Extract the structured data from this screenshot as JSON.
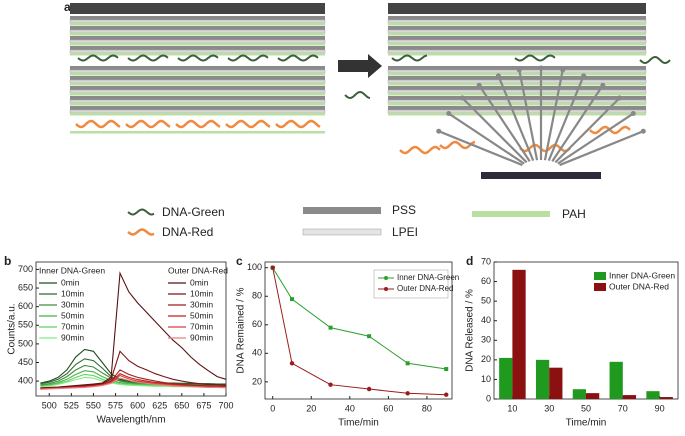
{
  "panel_labels": [
    "a",
    "b",
    "c",
    "d"
  ],
  "legend": [
    "DNA-Green",
    "DNA-Red",
    "PSS",
    "LPEI",
    "PAH"
  ],
  "chart_data": [
    {
      "type": "line",
      "x_label": "Wavelength/nm",
      "y_label": "Counts/a.u.",
      "legend_titles": [
        "Inner DNA-Green",
        "Outer DNA-Red"
      ],
      "xlim": [
        485,
        700
      ],
      "xticks": [
        500,
        525,
        550,
        575,
        600,
        625,
        650,
        675,
        700
      ],
      "ylim": [
        360,
        720
      ],
      "yticks": [
        400,
        450,
        500,
        550,
        600,
        650,
        700
      ],
      "x": [
        490,
        500,
        510,
        520,
        530,
        540,
        550,
        560,
        570,
        580,
        590,
        600,
        610,
        620,
        630,
        640,
        650,
        660,
        670,
        680,
        690,
        700
      ],
      "series": [
        {
          "name": "0min",
          "color": "#1e4d1e",
          "values": [
            395,
            400,
            410,
            430,
            465,
            485,
            480,
            450,
            420,
            405,
            400,
            398,
            397,
            396,
            395,
            395,
            394,
            394,
            393,
            393,
            392,
            392
          ]
        },
        {
          "name": "10min",
          "color": "#2e6b2e",
          "values": [
            393,
            397,
            405,
            420,
            445,
            460,
            455,
            435,
            412,
            402,
            398,
            396,
            395,
            394,
            394,
            393,
            393,
            392,
            392,
            391,
            391,
            390
          ]
        },
        {
          "name": "30min",
          "color": "#3f8f3f",
          "values": [
            390,
            393,
            400,
            412,
            430,
            442,
            438,
            422,
            408,
            400,
            396,
            394,
            393,
            392,
            392,
            391,
            391,
            390,
            390,
            389,
            389,
            388
          ]
        },
        {
          "name": "50min",
          "color": "#4caf4c",
          "values": [
            388,
            390,
            396,
            405,
            418,
            428,
            425,
            412,
            402,
            396,
            393,
            392,
            391,
            390,
            390,
            389,
            389,
            388,
            388,
            387,
            387,
            386
          ]
        },
        {
          "name": "70min",
          "color": "#5fd05f",
          "values": [
            386,
            388,
            393,
            400,
            410,
            418,
            415,
            405,
            398,
            393,
            391,
            390,
            389,
            388,
            388,
            387,
            387,
            386,
            386,
            385,
            385,
            384
          ]
        },
        {
          "name": "90min",
          "color": "#7ff07f",
          "values": [
            385,
            387,
            391,
            397,
            404,
            410,
            408,
            400,
            395,
            391,
            389,
            388,
            387,
            386,
            386,
            385,
            385,
            385,
            384,
            384,
            384,
            383
          ]
        },
        {
          "name": "0min",
          "color": "#5a1010",
          "values": [
            382,
            383,
            384,
            386,
            388,
            390,
            392,
            395,
            410,
            690,
            640,
            610,
            585,
            560,
            535,
            510,
            490,
            465,
            445,
            428,
            412,
            405
          ]
        },
        {
          "name": "10min",
          "color": "#7a1515",
          "values": [
            380,
            381,
            382,
            384,
            386,
            388,
            390,
            393,
            405,
            480,
            455,
            440,
            430,
            420,
            412,
            405,
            400,
            396,
            393,
            391,
            390,
            389
          ]
        },
        {
          "name": "30min",
          "color": "#a01c1c",
          "values": [
            380,
            381,
            382,
            383,
            385,
            386,
            388,
            391,
            400,
            430,
            418,
            410,
            405,
            400,
            396,
            393,
            391,
            389,
            388,
            387,
            386,
            386
          ]
        },
        {
          "name": "50min",
          "color": "#c02020",
          "values": [
            379,
            380,
            381,
            382,
            384,
            385,
            387,
            390,
            398,
            420,
            410,
            404,
            400,
            396,
            393,
            391,
            389,
            387,
            386,
            385,
            385,
            384
          ]
        },
        {
          "name": "70min",
          "color": "#d84040",
          "values": [
            379,
            380,
            381,
            382,
            383,
            384,
            386,
            389,
            396,
            415,
            406,
            400,
            397,
            394,
            391,
            389,
            387,
            386,
            385,
            384,
            384,
            383
          ]
        },
        {
          "name": "90min",
          "color": "#e88080",
          "values": [
            378,
            379,
            380,
            381,
            382,
            383,
            385,
            388,
            394,
            408,
            402,
            397,
            394,
            391,
            389,
            387,
            386,
            385,
            384,
            383,
            383,
            382
          ]
        }
      ]
    },
    {
      "type": "line",
      "markers": true,
      "x_label": "Time/min",
      "y_label": "DNA Remained / %",
      "xlim": [
        -4,
        93
      ],
      "xticks": [
        0,
        20,
        40,
        60,
        80
      ],
      "ylim": [
        8,
        104
      ],
      "yticks": [
        20,
        40,
        60,
        80,
        100
      ],
      "x": [
        0,
        10,
        30,
        50,
        70,
        90
      ],
      "series": [
        {
          "name": "Inner DNA-Green",
          "color": "#2ca02c",
          "values": [
            100,
            78,
            58,
            52,
            33,
            29
          ]
        },
        {
          "name": "Outer DNA-Red",
          "color": "#9b1c1c",
          "values": [
            100,
            33,
            18,
            15,
            12,
            11
          ]
        }
      ]
    },
    {
      "type": "bar",
      "x_label": "Time/min",
      "y_label": "DNA Released / %",
      "categories": [
        "10",
        "30",
        "50",
        "70",
        "90"
      ],
      "ylim": [
        0,
        70
      ],
      "yticks": [
        0,
        10,
        20,
        30,
        40,
        50,
        60,
        70
      ],
      "series": [
        {
          "name": "Inner DNA-Green",
          "color": "#1f9a1f",
          "values": [
            21,
            20,
            5,
            19,
            4
          ]
        },
        {
          "name": "Outer DNA-Red",
          "color": "#8b1010",
          "values": [
            66,
            16,
            3,
            2,
            1
          ]
        }
      ]
    }
  ]
}
